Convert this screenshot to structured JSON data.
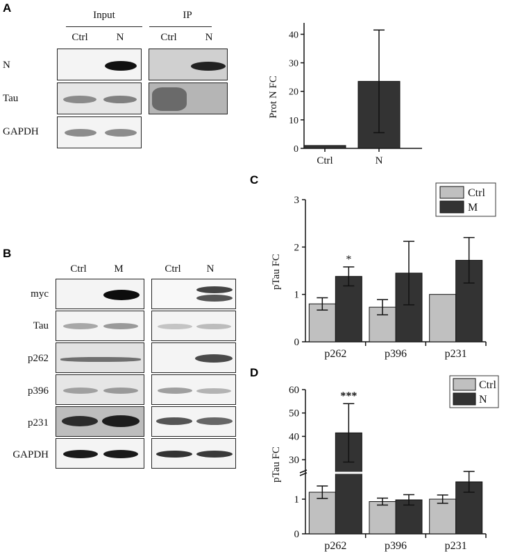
{
  "panels": {
    "a": "A",
    "b": "B",
    "c": "C",
    "d": "D"
  },
  "blot_a": {
    "group_labels": [
      "Input",
      "IP"
    ],
    "lane_labels": [
      "Ctrl",
      "N",
      "Ctrl",
      "N"
    ],
    "row_labels": [
      "N",
      "Tau",
      "GAPDH"
    ]
  },
  "blot_b": {
    "left_lanes": [
      "Ctrl",
      "M"
    ],
    "right_lanes": [
      "Ctrl",
      "N"
    ],
    "row_labels": [
      "myc",
      "Tau",
      "p262",
      "p396",
      "p231",
      "GAPDH"
    ]
  },
  "chart_data": [
    {
      "id": "A",
      "type": "bar",
      "categories": [
        "Ctrl",
        "N"
      ],
      "values": [
        1,
        23.5
      ],
      "errors": [
        0,
        18
      ],
      "ylabel": "Prot N FC",
      "ylim": [
        0,
        40
      ],
      "yticks": [
        "0",
        "10",
        "20",
        "30",
        "40"
      ],
      "significance": [
        "",
        "***"
      ],
      "colors": [
        "#333333",
        "#333333"
      ]
    },
    {
      "id": "C",
      "type": "bar",
      "categories": [
        "p262",
        "p396",
        "p231"
      ],
      "series": [
        {
          "name": "Ctrl",
          "values": [
            0.8,
            0.73,
            1.0
          ],
          "errors": [
            0.13,
            0.16,
            0
          ]
        },
        {
          "name": "M",
          "values": [
            1.38,
            1.45,
            1.72
          ],
          "errors": [
            0.2,
            0.67,
            0.48
          ]
        }
      ],
      "ylabel": "pTau FC",
      "ylim": [
        0,
        3
      ],
      "yticks": [
        "0",
        "1",
        "2",
        "3"
      ],
      "significance": [
        "*",
        "",
        ""
      ],
      "colors": [
        "#c0c0c0",
        "#333333"
      ],
      "legend": "top-right"
    },
    {
      "id": "D",
      "type": "bar",
      "categories": [
        "p262",
        "p396",
        "p231"
      ],
      "series": [
        {
          "name": "Ctrl",
          "values": [
            1.2,
            0.93,
            1.0
          ],
          "errors": [
            0.18,
            0.1,
            0.12
          ]
        },
        {
          "name": "N",
          "values": [
            41.5,
            0.98,
            1.5
          ],
          "errors": [
            12.5,
            0.15,
            0.3
          ]
        }
      ],
      "ylabel": "pTau FC",
      "broken_axis": true,
      "yticks_low": [
        "0",
        "1"
      ],
      "yticks_high": [
        "30",
        "40",
        "50",
        "60"
      ],
      "significance": [
        "***",
        "",
        ""
      ],
      "colors": [
        "#c0c0c0",
        "#333333"
      ],
      "legend": "top-right"
    }
  ]
}
